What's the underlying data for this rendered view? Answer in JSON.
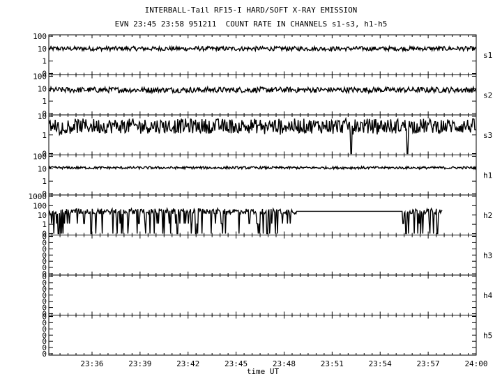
{
  "header": {
    "title": "INTERBALL-Tail RF15-I HARD/SOFT X-RAY EMISSION",
    "subtitle": "EVN 23:45 23:58 951211  COUNT RATE IN CHANNELS s1-s3, h1-h5"
  },
  "chart_data": {
    "type": "line",
    "title": "INTERBALL-Tail RF15-I HARD/SOFT X-RAY EMISSION",
    "subtitle": "EVN 23:45 23:58 951211  COUNT RATE IN CHANNELS s1-s3, h1-h5",
    "xlabel": "time UT",
    "x_range_minutes": [
      1413.3,
      1440
    ],
    "x_ticks": [
      {
        "value": 1416,
        "label": "23:36"
      },
      {
        "value": 1419,
        "label": "23:39"
      },
      {
        "value": 1422,
        "label": "23:42"
      },
      {
        "value": 1425,
        "label": "23:45"
      },
      {
        "value": 1428,
        "label": "23:48"
      },
      {
        "value": 1431,
        "label": "23:51"
      },
      {
        "value": 1434,
        "label": "23:54"
      },
      {
        "value": 1437,
        "label": "23:57"
      },
      {
        "value": 1440,
        "label": "24:00"
      }
    ],
    "y_scale": "log",
    "panels": [
      {
        "channel": "s1",
        "y_ticks": [
          "100",
          "10",
          "1",
          "0"
        ],
        "decades": 2,
        "level": 10,
        "noise": 0.35,
        "dropouts": [],
        "gaps": []
      },
      {
        "channel": "s2",
        "y_ticks": [
          "100",
          "10",
          "1",
          "0"
        ],
        "decades": 2,
        "level": 8,
        "noise": 0.45,
        "dropouts": [],
        "gaps": []
      },
      {
        "channel": "s3",
        "y_ticks": [
          "10",
          "1",
          "0"
        ],
        "decades": 1,
        "level": 3,
        "noise": 0.8,
        "dropouts": [
          1432.2,
          1435.7
        ],
        "gaps": []
      },
      {
        "channel": "h1",
        "y_ticks": [
          "100",
          "10",
          "1",
          "0"
        ],
        "decades": 2,
        "level": 12,
        "noise": 0.2,
        "dropouts": [],
        "gaps": []
      },
      {
        "channel": "h2",
        "y_ticks": [
          "1000",
          "100",
          "10",
          "1",
          "0"
        ],
        "decades": 3,
        "level": 25,
        "noise": 0.6,
        "dropouts": [],
        "gaps": [
          [
            1428.8,
            1435.4
          ],
          [
            1437.9,
            1440
          ]
        ]
      },
      {
        "channel": "h3",
        "y_ticks": [
          "0",
          "0",
          "0",
          "0",
          "0",
          "0",
          "0"
        ],
        "decades": 0,
        "level": 0,
        "noise": 0,
        "dropouts": [],
        "gaps": []
      },
      {
        "channel": "h4",
        "y_ticks": [
          "0",
          "0",
          "0",
          "0",
          "0",
          "0",
          "0"
        ],
        "decades": 0,
        "level": 0,
        "noise": 0,
        "dropouts": [],
        "gaps": []
      },
      {
        "channel": "h5",
        "y_ticks": [
          "0",
          "0",
          "0",
          "0",
          "0",
          "0",
          "0"
        ],
        "decades": 0,
        "level": 0,
        "noise": 0,
        "dropouts": [],
        "gaps": []
      }
    ]
  }
}
